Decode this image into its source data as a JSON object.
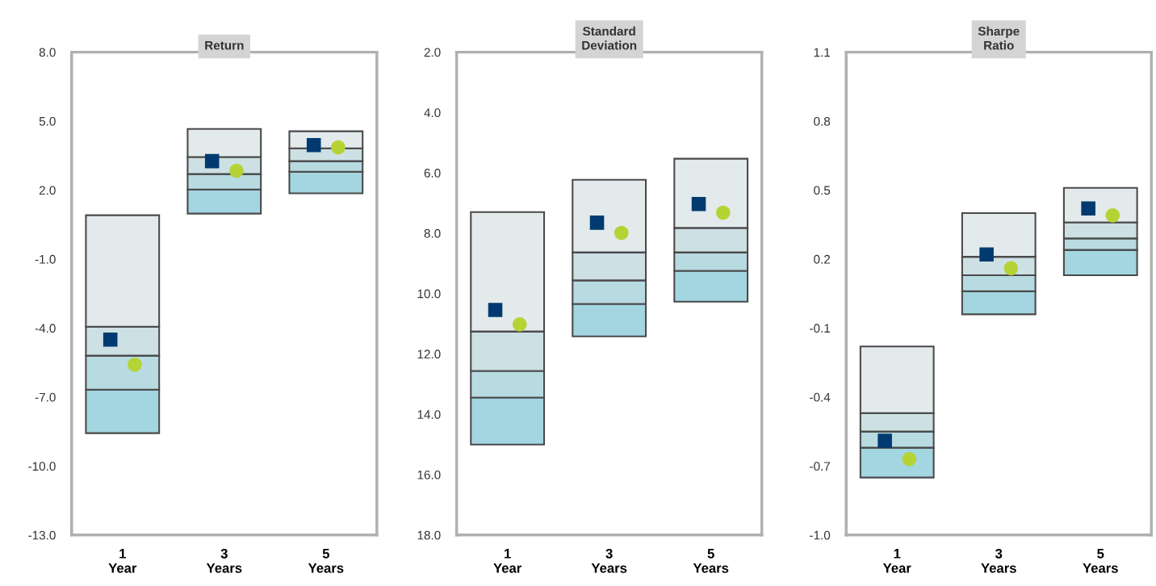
{
  "chart_data": [
    {
      "type": "bar",
      "title": "Return",
      "categories": [
        "1\nYear",
        "3\nYears",
        "5\nYears"
      ],
      "series": [
        {
          "color": "#a3d6e0",
          "base": [
            -8.57,
            0.98,
            1.86
          ],
          "values": [
            1.89,
            1.05,
            0.94
          ]
        },
        {
          "color": "#b8dbe2",
          "base": [
            -6.68,
            2.03,
            2.8
          ],
          "values": [
            1.48,
            0.67,
            0.46
          ]
        },
        {
          "color": "#cde0e4",
          "base": [
            -5.2,
            2.7,
            3.26
          ],
          "values": [
            1.26,
            0.74,
            0.56
          ]
        },
        {
          "color": "#e2eaec",
          "base": [
            -3.94,
            3.44,
            3.82
          ],
          "values": [
            4.85,
            1.22,
            0.74
          ]
        },
        {
          "type": "scatter",
          "marker": "square",
          "color": "#003a70",
          "x": [
            "1\nYear",
            "3\nYears",
            "5\nYears"
          ],
          "values": [
            -4.5,
            3.26,
            3.96
          ]
        },
        {
          "type": "scatter",
          "marker": "circle",
          "color": "#b5d334",
          "x": [
            "1\nYear",
            "3\nYears",
            "5\nYears"
          ],
          "values": [
            -5.59,
            2.84,
            3.86
          ]
        }
      ],
      "ylim": [
        -13,
        8
      ],
      "yticks": [
        {
          "value": -13,
          "label": "-13.0"
        },
        {
          "value": -10,
          "label": "-10.0"
        },
        {
          "value": -7,
          "label": "-7.0"
        },
        {
          "value": -4,
          "label": "-4.0"
        },
        {
          "value": -1,
          "label": "-1.0"
        },
        {
          "value": 2,
          "label": "2.0"
        },
        {
          "value": 5,
          "label": "5.0"
        },
        {
          "value": 8,
          "label": "8.0"
        }
      ]
    },
    {
      "type": "bar",
      "title": "Standard\nDeviation",
      "categories": [
        "1\nYear",
        "3\nYears",
        "5\nYears"
      ],
      "series": [
        {
          "color": "#e2eaec",
          "base": [
            7.3,
            6.23,
            5.53
          ],
          "values": [
            3.96,
            2.41,
            2.3
          ]
        },
        {
          "color": "#cde0e4",
          "base": [
            11.26,
            8.64,
            7.83
          ],
          "values": [
            1.31,
            0.93,
            0.81
          ]
        },
        {
          "color": "#b8dbe2",
          "base": [
            12.57,
            9.57,
            8.64
          ],
          "values": [
            0.88,
            0.78,
            0.61
          ]
        },
        {
          "color": "#a3d6e0",
          "base": [
            13.45,
            10.35,
            9.25
          ],
          "values": [
            1.55,
            1.07,
            1.02
          ]
        },
        {
          "type": "scatter",
          "marker": "square",
          "color": "#003a70",
          "x": [
            "1\nYear",
            "3\nYears",
            "5\nYears"
          ],
          "values": [
            10.54,
            7.65,
            7.03
          ]
        },
        {
          "type": "scatter",
          "marker": "circle",
          "color": "#b5d334",
          "x": [
            "1\nYear",
            "3\nYears",
            "5\nYears"
          ],
          "values": [
            11.02,
            7.99,
            7.32
          ]
        }
      ],
      "ylim": [
        18,
        2
      ],
      "yticks": [
        {
          "value": 2,
          "label": "2.0"
        },
        {
          "value": 4,
          "label": "4.0"
        },
        {
          "value": 6,
          "label": "6.0"
        },
        {
          "value": 8,
          "label": "8.0"
        },
        {
          "value": 10,
          "label": "10.0"
        },
        {
          "value": 12,
          "label": "12.0"
        },
        {
          "value": 14,
          "label": "14.0"
        },
        {
          "value": 16,
          "label": "16.0"
        },
        {
          "value": 18,
          "label": "18.0"
        }
      ]
    },
    {
      "type": "bar",
      "title": "Sharpe\nRatio",
      "categories": [
        "1\nYear",
        "3\nYears",
        "5\nYears"
      ],
      "series": [
        {
          "color": "#a3d6e0",
          "base": [
            -0.75,
            -0.04,
            0.13
          ],
          "values": [
            0.13,
            0.1,
            0.11
          ]
        },
        {
          "color": "#b8dbe2",
          "base": [
            -0.62,
            0.06,
            0.24
          ],
          "values": [
            0.07,
            0.07,
            0.05
          ]
        },
        {
          "color": "#cde0e4",
          "base": [
            -0.55,
            0.13,
            0.29
          ],
          "values": [
            0.08,
            0.08,
            0.07
          ]
        },
        {
          "color": "#e2eaec",
          "base": [
            -0.47,
            0.21,
            0.36
          ],
          "values": [
            0.29,
            0.19,
            0.15
          ]
        },
        {
          "type": "scatter",
          "marker": "square",
          "color": "#003a70",
          "x": [
            "1\nYear",
            "3\nYears",
            "5\nYears"
          ],
          "values": [
            -0.59,
            0.22,
            0.42
          ]
        },
        {
          "type": "scatter",
          "marker": "circle",
          "color": "#b5d334",
          "x": [
            "1\nYear",
            "3\nYears",
            "5\nYears"
          ],
          "values": [
            -0.67,
            0.16,
            0.39
          ]
        }
      ],
      "ylim": [
        -1.0,
        1.1
      ],
      "yticks": [
        {
          "value": -1.0,
          "label": "-1.0"
        },
        {
          "value": -0.7,
          "label": "-0.7"
        },
        {
          "value": -0.4,
          "label": "-0.4"
        },
        {
          "value": -0.1,
          "label": "-0.1"
        },
        {
          "value": 0.2,
          "label": "0.2"
        },
        {
          "value": 0.5,
          "label": "0.5"
        },
        {
          "value": 0.8,
          "label": "0.8"
        },
        {
          "value": 1.1,
          "label": "1.1"
        }
      ]
    }
  ]
}
